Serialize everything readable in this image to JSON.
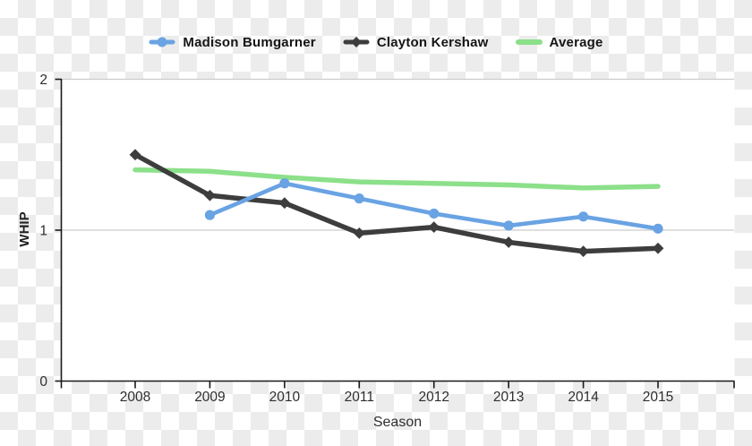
{
  "chart_data": {
    "type": "line",
    "title": "",
    "xlabel": "Season",
    "ylabel": "WHIP",
    "categories": [
      "2008",
      "2009",
      "2010",
      "2011",
      "2012",
      "2013",
      "2014",
      "2015"
    ],
    "yticks": [
      "0",
      "1",
      "2"
    ],
    "ylim": [
      0,
      2
    ],
    "grid": "horizontal gridlines at y=1 and y=2",
    "legend_position": "top-center",
    "series": [
      {
        "name": "Madison Bumgarner",
        "color": "#69a3e3",
        "marker": "circle",
        "values": [
          null,
          1.1,
          1.31,
          1.21,
          1.11,
          1.03,
          1.09,
          1.01
        ]
      },
      {
        "name": "Clayton Kershaw",
        "color": "#3d3d3d",
        "marker": "diamond",
        "values": [
          1.5,
          1.23,
          1.18,
          0.98,
          1.02,
          0.92,
          0.86,
          0.88
        ]
      },
      {
        "name": "Average",
        "color": "#8ce08a",
        "marker": "none",
        "values": [
          1.4,
          1.39,
          1.35,
          1.32,
          1.31,
          1.3,
          1.28,
          1.29
        ]
      }
    ]
  },
  "colors": {
    "plot_background": "#ffffff",
    "page_checker": "#ececec",
    "axis": "#1a1a1a",
    "gridline": "#cccccc",
    "tick_text": "#2e2e2e"
  }
}
